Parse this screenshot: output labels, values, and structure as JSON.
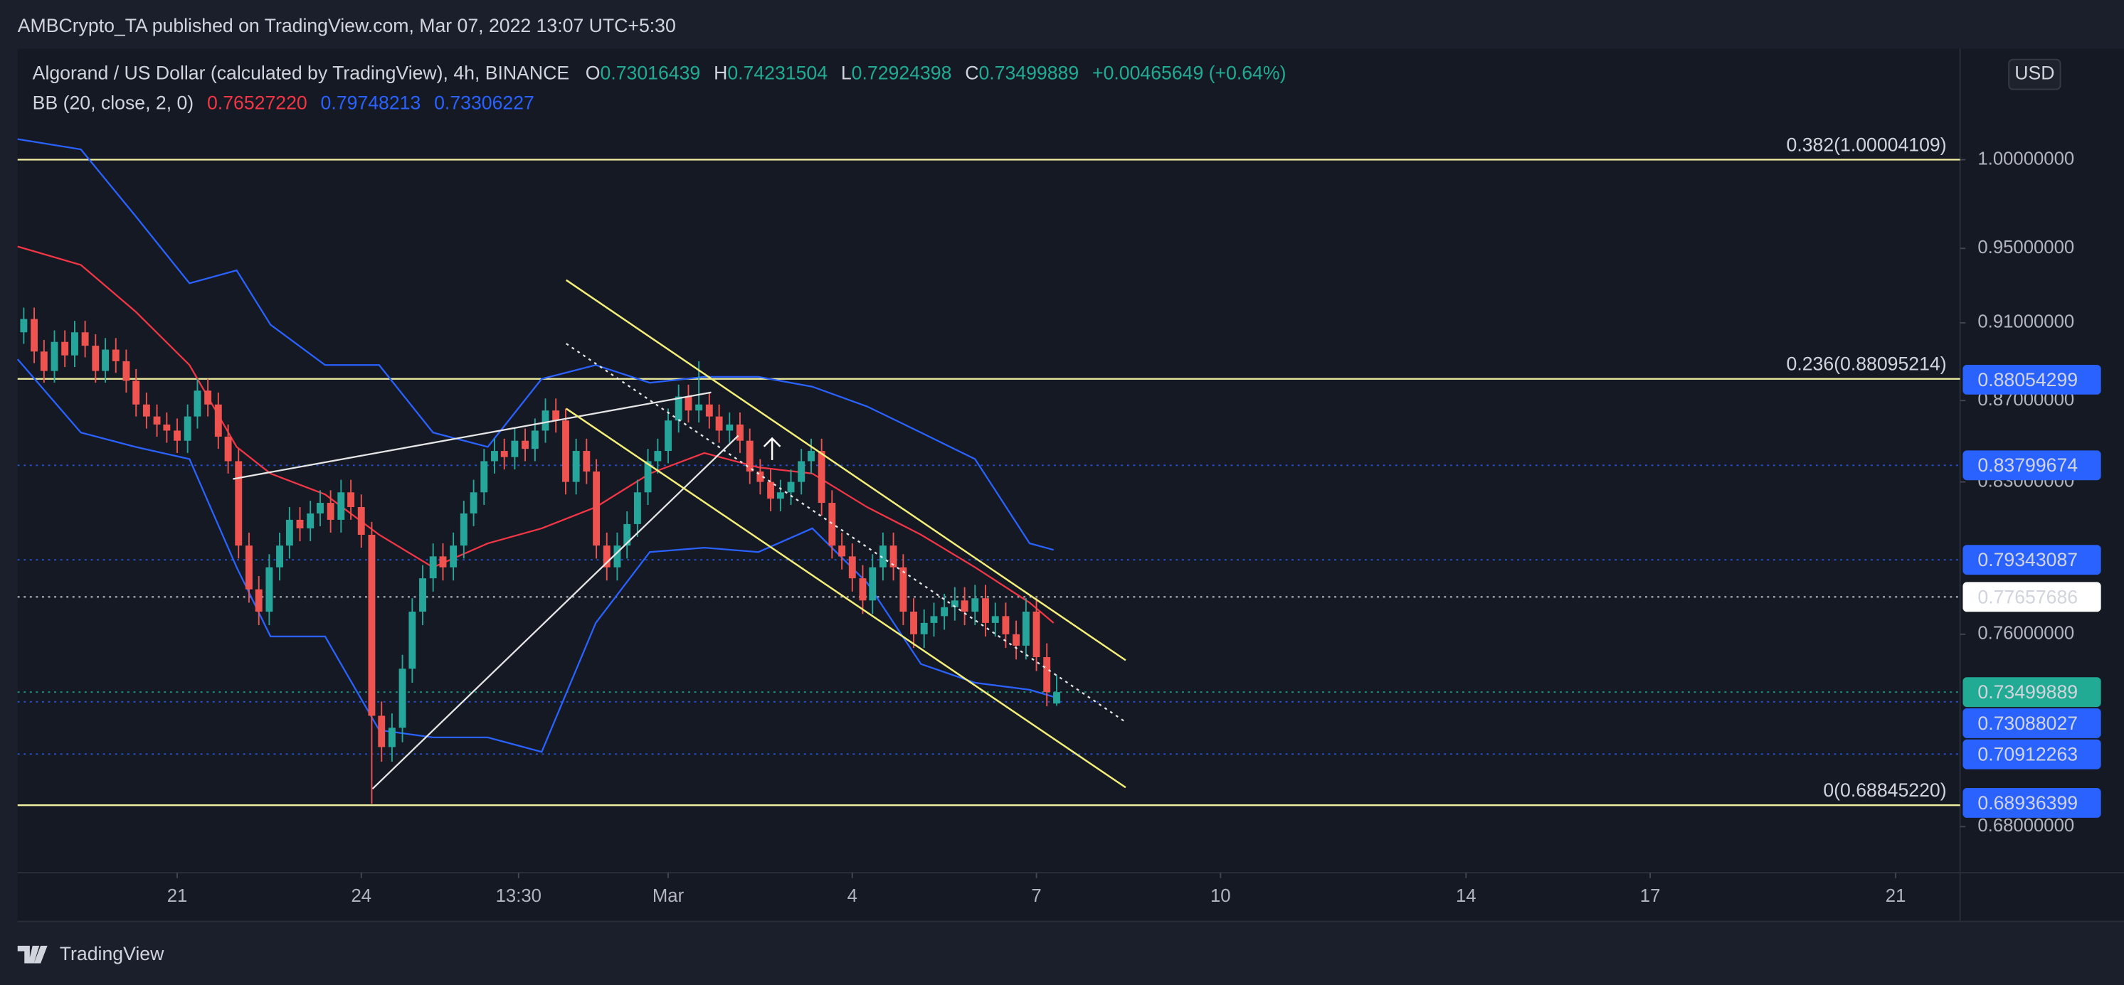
{
  "header": {
    "published": "AMBCrypto_TA published on TradingView.com, Mar 07, 2022 13:07 UTC+5:30"
  },
  "chart_data": {
    "type": "candlestick",
    "title": "Algorand / US Dollar (calculated by TradingView), 4h, BINANCE",
    "ohlc_letters": [
      "O",
      "H",
      "L",
      "C"
    ],
    "change": "+0.00465649 (+0.64%)",
    "up_color": "#26a69a",
    "down_color": "#ef5350",
    "x": [
      18.5,
      18.67,
      18.83,
      19,
      19.17,
      19.33,
      19.5,
      19.67,
      19.83,
      20,
      20.17,
      20.33,
      20.5,
      20.67,
      20.83,
      21,
      21.17,
      21.33,
      21.5,
      21.67,
      21.83,
      22,
      22.17,
      22.33,
      22.5,
      22.67,
      22.83,
      23,
      23.17,
      23.33,
      23.5,
      23.67,
      23.83,
      24,
      24.17,
      24.33,
      24.5,
      24.67,
      24.83,
      25,
      25.17,
      25.33,
      25.5,
      25.67,
      25.83,
      26,
      26.17,
      26.33,
      26.5,
      26.67,
      26.83,
      27,
      27.17,
      27.33,
      27.5,
      27.67,
      27.83,
      28,
      28.17,
      28.33,
      28.5,
      28.67,
      28.83,
      29,
      29.17,
      29.33,
      29.5,
      29.67,
      29.83,
      30,
      30.17,
      30.33,
      30.5,
      30.67,
      30.83,
      31,
      31.17,
      31.33,
      31.5,
      31.67,
      31.83,
      32,
      32.17,
      32.33,
      32.5,
      32.67,
      32.83,
      33,
      33.17,
      33.33,
      33.5,
      33.67,
      33.83,
      34,
      34.17,
      34.33,
      34.5,
      34.67,
      34.83,
      35,
      35.17,
      35.33
    ],
    "open": [
      0.905,
      0.912,
      0.895,
      0.885,
      0.9,
      0.893,
      0.905,
      0.898,
      0.885,
      0.896,
      0.89,
      0.88,
      0.868,
      0.862,
      0.858,
      0.855,
      0.85,
      0.862,
      0.875,
      0.868,
      0.852,
      0.84,
      0.8,
      0.78,
      0.77,
      0.79,
      0.8,
      0.812,
      0.808,
      0.815,
      0.82,
      0.812,
      0.825,
      0.818,
      0.805,
      0.725,
      0.712,
      0.72,
      0.745,
      0.77,
      0.785,
      0.795,
      0.79,
      0.8,
      0.815,
      0.825,
      0.84,
      0.845,
      0.842,
      0.85,
      0.846,
      0.855,
      0.865,
      0.86,
      0.83,
      0.845,
      0.835,
      0.8,
      0.79,
      0.8,
      0.81,
      0.825,
      0.84,
      0.845,
      0.86,
      0.872,
      0.865,
      0.868,
      0.862,
      0.855,
      0.858,
      0.85,
      0.835,
      0.83,
      0.822,
      0.825,
      0.83,
      0.84,
      0.845,
      0.82,
      0.8,
      0.795,
      0.785,
      0.775,
      0.79,
      0.8,
      0.79,
      0.77,
      0.76,
      0.765,
      0.768,
      0.772,
      0.775,
      0.77,
      0.776,
      0.765,
      0.768,
      0.76,
      0.755,
      0.77,
      0.75,
      0.73016439
    ],
    "high": [
      0.918,
      0.918,
      0.901,
      0.906,
      0.906,
      0.911,
      0.911,
      0.904,
      0.902,
      0.902,
      0.896,
      0.886,
      0.874,
      0.868,
      0.864,
      0.861,
      0.868,
      0.881,
      0.881,
      0.874,
      0.858,
      0.846,
      0.806,
      0.786,
      0.796,
      0.806,
      0.818,
      0.818,
      0.821,
      0.826,
      0.826,
      0.831,
      0.831,
      0.824,
      0.811,
      0.731,
      0.726,
      0.751,
      0.776,
      0.791,
      0.801,
      0.801,
      0.806,
      0.821,
      0.831,
      0.846,
      0.851,
      0.851,
      0.856,
      0.856,
      0.861,
      0.871,
      0.871,
      0.866,
      0.851,
      0.851,
      0.841,
      0.806,
      0.806,
      0.816,
      0.831,
      0.846,
      0.851,
      0.866,
      0.878,
      0.878,
      0.89,
      0.874,
      0.868,
      0.864,
      0.864,
      0.856,
      0.841,
      0.836,
      0.831,
      0.836,
      0.846,
      0.851,
      0.851,
      0.826,
      0.806,
      0.801,
      0.791,
      0.796,
      0.806,
      0.806,
      0.796,
      0.776,
      0.771,
      0.774,
      0.778,
      0.781,
      0.781,
      0.782,
      0.782,
      0.774,
      0.774,
      0.766,
      0.776,
      0.776,
      0.756,
      0.74231504
    ],
    "low": [
      0.899,
      0.889,
      0.879,
      0.879,
      0.887,
      0.887,
      0.892,
      0.879,
      0.879,
      0.884,
      0.874,
      0.862,
      0.856,
      0.852,
      0.849,
      0.844,
      0.844,
      0.856,
      0.862,
      0.846,
      0.834,
      0.794,
      0.774,
      0.764,
      0.764,
      0.784,
      0.794,
      0.802,
      0.802,
      0.809,
      0.806,
      0.806,
      0.812,
      0.799,
      0.689,
      0.706,
      0.706,
      0.714,
      0.739,
      0.764,
      0.779,
      0.784,
      0.784,
      0.794,
      0.809,
      0.819,
      0.834,
      0.836,
      0.836,
      0.84,
      0.84,
      0.849,
      0.854,
      0.824,
      0.824,
      0.829,
      0.794,
      0.784,
      0.784,
      0.794,
      0.804,
      0.819,
      0.834,
      0.839,
      0.854,
      0.859,
      0.859,
      0.856,
      0.849,
      0.849,
      0.844,
      0.829,
      0.824,
      0.816,
      0.816,
      0.819,
      0.824,
      0.834,
      0.814,
      0.794,
      0.789,
      0.779,
      0.769,
      0.769,
      0.784,
      0.784,
      0.764,
      0.754,
      0.754,
      0.759,
      0.762,
      0.766,
      0.764,
      0.764,
      0.759,
      0.759,
      0.754,
      0.749,
      0.749,
      0.744,
      0.729,
      0.72924398
    ],
    "close": [
      0.912,
      0.895,
      0.885,
      0.9,
      0.893,
      0.905,
      0.898,
      0.885,
      0.896,
      0.89,
      0.88,
      0.868,
      0.862,
      0.858,
      0.855,
      0.85,
      0.862,
      0.875,
      0.868,
      0.852,
      0.84,
      0.8,
      0.78,
      0.77,
      0.79,
      0.8,
      0.812,
      0.808,
      0.815,
      0.82,
      0.812,
      0.825,
      0.818,
      0.805,
      0.725,
      0.712,
      0.72,
      0.745,
      0.77,
      0.785,
      0.795,
      0.79,
      0.8,
      0.815,
      0.825,
      0.84,
      0.845,
      0.842,
      0.85,
      0.846,
      0.855,
      0.865,
      0.86,
      0.83,
      0.845,
      0.835,
      0.8,
      0.79,
      0.8,
      0.81,
      0.825,
      0.84,
      0.845,
      0.86,
      0.872,
      0.865,
      0.868,
      0.862,
      0.855,
      0.858,
      0.85,
      0.835,
      0.83,
      0.822,
      0.825,
      0.83,
      0.84,
      0.845,
      0.82,
      0.8,
      0.795,
      0.785,
      0.775,
      0.79,
      0.8,
      0.79,
      0.77,
      0.76,
      0.765,
      0.768,
      0.772,
      0.775,
      0.77,
      0.776,
      0.765,
      0.768,
      0.76,
      0.755,
      0.77,
      0.75,
      0.735,
      0.73499889
    ],
    "indicator": {
      "name": "BB (20, close, 2, 0)",
      "x": [
        18.4,
        19.43,
        20.32,
        21.2,
        21.97,
        22.52,
        23.41,
        24.29,
        25.17,
        26.06,
        26.94,
        27.82,
        28.7,
        29.59,
        30.47,
        31.35,
        32.24,
        33.12,
        34.0,
        34.89,
        35.28
      ],
      "series": [
        {
          "color": "#f23645",
          "value_label": "0.76527220",
          "values": [
            0.951,
            0.941,
            0.916,
            0.888,
            0.847,
            0.834,
            0.824,
            0.805,
            0.79,
            0.801,
            0.808,
            0.818,
            0.834,
            0.844,
            0.837,
            0.834,
            0.818,
            0.805,
            0.79,
            0.774,
            0.765
          ]
        },
        {
          "color": "#2962ff",
          "value_label": "0.79748213",
          "values": [
            1.012,
            1.006,
            0.968,
            0.931,
            0.938,
            0.909,
            0.888,
            0.888,
            0.854,
            0.847,
            0.881,
            0.888,
            0.879,
            0.882,
            0.882,
            0.877,
            0.867,
            0.854,
            0.841,
            0.801,
            0.798
          ]
        },
        {
          "color": "#2962ff",
          "value_label": "0.73306227",
          "values": [
            0.891,
            0.854,
            0.847,
            0.841,
            0.79,
            0.759,
            0.759,
            0.719,
            0.716,
            0.716,
            0.71,
            0.765,
            0.797,
            0.799,
            0.797,
            0.808,
            0.783,
            0.747,
            0.739,
            0.736,
            0.733
          ]
        }
      ]
    },
    "levels": [
      {
        "label": "0.382(1.00004109)",
        "value": 1.00004109,
        "color": "#f2f0a1"
      },
      {
        "label": "0.236(0.88095214)",
        "value": 0.88095214,
        "color": "#f2f0a1"
      },
      {
        "label": "0(0.68845220)",
        "value": 0.6884522,
        "color": "#f2f0a1"
      }
    ],
    "price_tags": [
      {
        "value": 0.88054299,
        "color": "#2962ff",
        "text_color": "#ffffff",
        "dotted": false
      },
      {
        "value": 0.83799674,
        "color": "#2962ff",
        "text_color": "#ffffff",
        "dotted": true
      },
      {
        "value": 0.79343087,
        "color": "#2962ff",
        "text_color": "#ffffff",
        "dotted": true
      },
      {
        "value": 0.77657686,
        "color": "#ffffff",
        "text_color": "#131722",
        "dotted": true
      },
      {
        "value": 0.73499889,
        "color": "#22ab94",
        "text_color": "#ffffff",
        "dotted": true
      },
      {
        "value": 0.73088027,
        "color": "#2962ff",
        "text_color": "#ffffff",
        "dotted": true
      },
      {
        "value": 0.70912263,
        "color": "#2962ff",
        "text_color": "#ffffff",
        "dotted": true
      },
      {
        "value": 0.68936399,
        "color": "#2962ff",
        "text_color": "#ffffff",
        "dotted": false
      }
    ],
    "xlim": [
      18.4,
      50.05
    ],
    "ylim": [
      0.6621,
      1.0663
    ],
    "log_y": true,
    "yticks": [
      {
        "value": 1,
        "label": "1.00000000"
      },
      {
        "value": 0.95,
        "label": "0.95000000"
      },
      {
        "value": 0.91,
        "label": "0.91000000"
      },
      {
        "value": 0.87,
        "label": "0.87000000"
      },
      {
        "value": 0.83,
        "label": "0.83000000"
      },
      {
        "value": 0.76,
        "label": "0.76000000"
      },
      {
        "value": 0.68,
        "label": "0.68000000"
      }
    ],
    "xticks": [
      21,
      24,
      {
        "value": 26.5625,
        "label": "13:30"
      },
      {
        "value": 29,
        "label": "Mar"
      },
      {
        "value": 32,
        "label": "4"
      },
      {
        "value": 35,
        "label": "7"
      },
      {
        "value": 38,
        "label": "10"
      },
      {
        "value": 42,
        "label": "14"
      },
      {
        "value": 45,
        "label": "17"
      },
      {
        "value": 49,
        "label": "21"
      }
    ],
    "currency": "USD"
  },
  "footer": {
    "brand": "TradingView"
  }
}
